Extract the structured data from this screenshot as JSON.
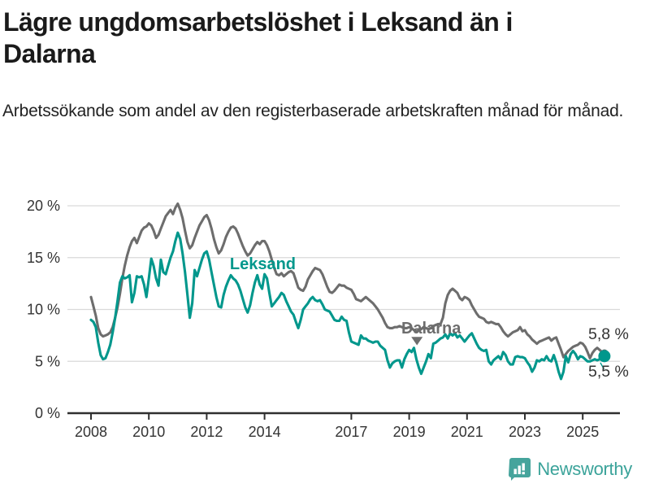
{
  "header": {
    "title_line1": "Lägre ungdomsarbetslöshet i Leksand än i",
    "title_line2": "Dalarna",
    "subtitle": "Arbetssökande som andel av den registerbaserade arbetskraften månad för månad."
  },
  "footer": {
    "brand": "Newsworthy"
  },
  "colors": {
    "leksand": "#00978c",
    "dalarna": "#6d6d6d",
    "grid": "#d9d9d9",
    "axis": "#2f2f2f",
    "tick_label": "#333333",
    "end_label": "#333333",
    "logo": "#45a49c"
  },
  "chart_data": {
    "type": "line",
    "title": "Lägre ungdomsarbetslöshet i Leksand än i Dalarna",
    "subtitle": "Arbetssökande som andel av den registerbaserade arbetskraften månad för månad.",
    "frequency": "monthly",
    "x_start_year": 2008,
    "x_end": "2025-10",
    "x_tick_years": [
      2008,
      2010,
      2012,
      2014,
      2017,
      2019,
      2021,
      2023,
      2025
    ],
    "y_ticks": [
      0,
      5,
      10,
      15,
      20
    ],
    "y_suffix": " %",
    "ylim": [
      0,
      21
    ],
    "grid": true,
    "legend_position": "inline-annotations",
    "series": [
      {
        "name": "Dalarna",
        "color": "#6d6d6d",
        "end_label": "5,8 %",
        "end_dot_radius": 4.5,
        "values": [
          11.2,
          10.3,
          9.4,
          8.2,
          7.6,
          7.4,
          7.5,
          7.6,
          7.8,
          8.3,
          9.2,
          10.2,
          11.5,
          13.0,
          14.2,
          15.2,
          16.0,
          16.6,
          16.9,
          16.4,
          17.0,
          17.6,
          17.9,
          18.0,
          18.3,
          18.1,
          17.6,
          16.9,
          17.2,
          17.8,
          18.4,
          19.0,
          19.3,
          19.6,
          19.2,
          19.8,
          20.2,
          19.6,
          18.8,
          17.6,
          16.5,
          15.9,
          16.2,
          16.9,
          17.5,
          18.1,
          18.5,
          18.9,
          19.1,
          18.6,
          17.8,
          16.8,
          16.0,
          15.4,
          15.7,
          16.3,
          17.0,
          17.5,
          17.9,
          18.0,
          17.8,
          17.3,
          16.7,
          16.1,
          15.6,
          15.2,
          15.4,
          15.8,
          16.2,
          16.5,
          16.3,
          16.6,
          16.6,
          16.2,
          15.6,
          14.8,
          14.0,
          13.4,
          13.3,
          13.5,
          13.2,
          13.4,
          13.6,
          13.7,
          13.5,
          12.8,
          12.1,
          11.9,
          11.8,
          12.2,
          12.9,
          13.3,
          13.7,
          14.0,
          13.9,
          13.8,
          13.4,
          12.8,
          12.2,
          11.7,
          11.6,
          11.8,
          12.1,
          12.4,
          12.3,
          12.3,
          12.1,
          12.0,
          11.9,
          11.5,
          11.0,
          10.9,
          10.8,
          11.0,
          11.2,
          11.0,
          10.8,
          10.6,
          10.3,
          10.0,
          9.6,
          9.2,
          8.7,
          8.3,
          8.2,
          8.2,
          8.3,
          8.3,
          8.4,
          8.3,
          8.2,
          8.2,
          8.3,
          8.2,
          8.0,
          7.9,
          8.0,
          8.1,
          8.3,
          8.2,
          8.1,
          8.2,
          8.4,
          8.5,
          8.6,
          8.6,
          9.2,
          10.6,
          11.4,
          11.8,
          12.0,
          11.8,
          11.6,
          11.1,
          10.9,
          11.2,
          11.1,
          10.9,
          10.4,
          10.0,
          9.6,
          9.3,
          9.2,
          9.1,
          8.8,
          8.7,
          8.8,
          8.7,
          8.6,
          8.6,
          8.3,
          7.9,
          7.6,
          7.4,
          7.6,
          7.8,
          7.9,
          8.0,
          8.3,
          7.9,
          8.0,
          7.6,
          7.4,
          7.1,
          6.9,
          6.7,
          6.9,
          7.0,
          7.1,
          7.2,
          7.3,
          7.0,
          7.2,
          7.3,
          6.7,
          6.1,
          5.4,
          5.7,
          6.0,
          6.2,
          6.4,
          6.5,
          6.6,
          6.8,
          6.7,
          6.4,
          5.9,
          5.3,
          5.8,
          6.1,
          6.3,
          6.1,
          5.9,
          5.8
        ]
      },
      {
        "name": "Leksand",
        "color": "#00978c",
        "end_label": "5,5 %",
        "end_dot_radius": 7.5,
        "leader_line": true,
        "values": [
          9.0,
          8.8,
          8.3,
          6.8,
          5.6,
          5.2,
          5.3,
          5.9,
          6.6,
          7.8,
          9.2,
          10.8,
          12.6,
          13.2,
          13.0,
          13.1,
          13.3,
          10.7,
          11.6,
          13.2,
          13.1,
          13.2,
          12.4,
          11.2,
          13.0,
          14.9,
          14.2,
          13.0,
          12.3,
          14.8,
          13.6,
          13.4,
          14.2,
          15.0,
          15.6,
          16.6,
          17.4,
          16.8,
          15.4,
          13.6,
          11.4,
          9.2,
          10.6,
          13.8,
          13.2,
          14.0,
          14.8,
          15.4,
          15.6,
          14.8,
          13.6,
          12.4,
          11.2,
          10.3,
          10.2,
          11.4,
          12.2,
          12.8,
          13.3,
          13.0,
          12.8,
          12.4,
          11.8,
          11.0,
          10.2,
          9.7,
          10.4,
          11.6,
          12.6,
          13.3,
          12.4,
          12.0,
          13.4,
          13.0,
          11.6,
          10.3,
          10.6,
          10.9,
          11.2,
          11.6,
          11.4,
          10.8,
          10.3,
          9.8,
          9.5,
          8.8,
          8.2,
          9.0,
          10.0,
          10.3,
          10.6,
          11.0,
          11.2,
          10.9,
          10.8,
          10.9,
          10.5,
          10.0,
          9.9,
          9.8,
          9.4,
          9.0,
          8.9,
          8.9,
          9.3,
          9.0,
          8.9,
          7.8,
          6.9,
          6.8,
          6.7,
          6.6,
          7.5,
          7.2,
          7.2,
          7.0,
          6.9,
          6.8,
          6.9,
          6.9,
          6.5,
          6.3,
          6.1,
          5.1,
          4.4,
          4.8,
          5.0,
          5.1,
          5.1,
          4.4,
          5.2,
          5.7,
          6.1,
          5.9,
          6.3,
          5.2,
          4.4,
          3.8,
          4.4,
          5.0,
          5.7,
          5.3,
          6.7,
          6.8,
          7.0,
          7.2,
          7.3,
          7.6,
          7.2,
          7.7,
          7.5,
          7.7,
          7.3,
          7.5,
          7.2,
          6.9,
          7.2,
          7.5,
          7.7,
          7.2,
          6.7,
          6.3,
          6.1,
          6.0,
          6.1,
          5.0,
          4.7,
          5.1,
          5.3,
          5.5,
          5.2,
          5.9,
          5.6,
          5.0,
          4.7,
          4.7,
          5.4,
          5.5,
          5.4,
          5.4,
          5.3,
          4.9,
          4.6,
          4.0,
          4.4,
          5.1,
          5.0,
          5.2,
          5.1,
          5.5,
          5.1,
          5.0,
          5.6,
          4.9,
          4.0,
          3.3,
          4.0,
          5.5,
          4.9,
          5.7,
          6.0,
          5.7,
          5.2,
          5.5,
          5.4,
          5.2,
          5.0,
          5.0,
          5.1,
          5.2,
          5.1,
          5.2,
          5.4,
          5.5
        ]
      }
    ],
    "annotations": [
      {
        "text": "Leksand",
        "color": "#00978c",
        "at_year": 2012.8,
        "at_value": 13.9
      },
      {
        "text": "Dalarna",
        "color": "#6d6d6d",
        "at_year": 2018.73,
        "at_value": 7.7,
        "arrow": {
          "at_year": 2019.27,
          "top_value": 7.35,
          "tip_value": 6.55
        }
      }
    ]
  }
}
